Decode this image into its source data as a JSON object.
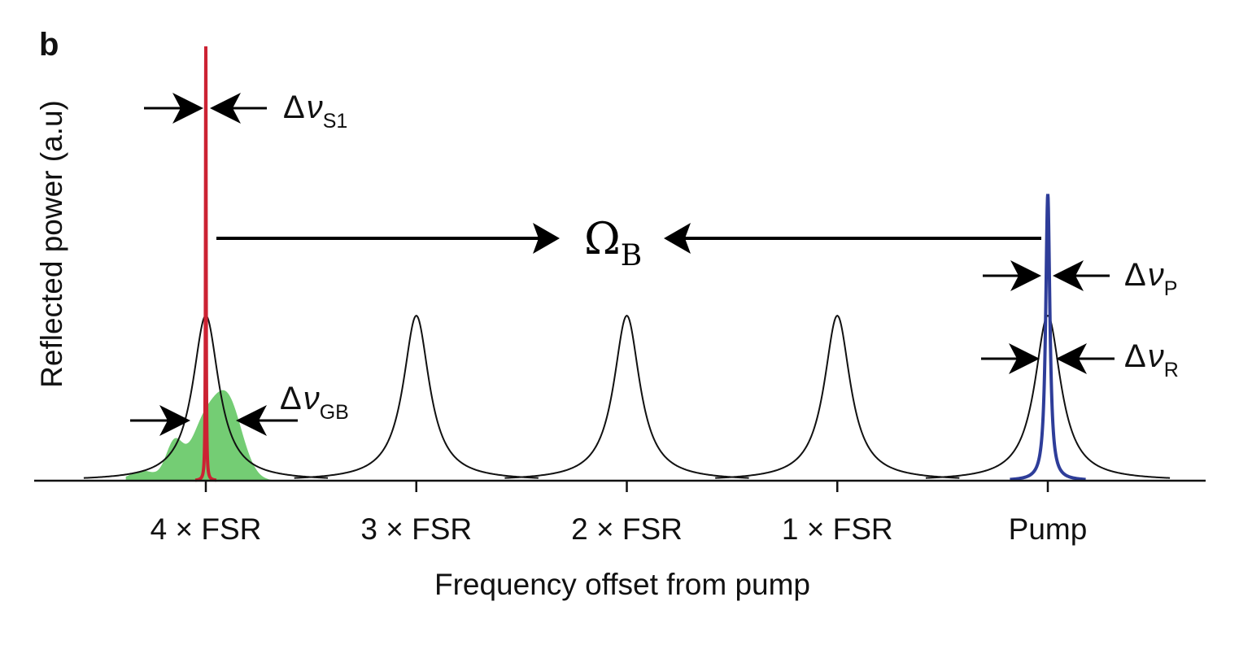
{
  "panel_label": "b",
  "chart_data": {
    "type": "line",
    "xlabel": "Frequency offset from pump",
    "ylabel": "Reflected power (a.u)",
    "categories": [
      "4 × FSR",
      "3 × FSR",
      "2 × FSR",
      "1 × FSR",
      "Pump"
    ],
    "x": [
      -4,
      -3,
      -2,
      -1,
      0
    ],
    "series": [
      {
        "name": "",
        "kind": "cavity-resonances",
        "color": "#111111",
        "centers": [
          -4,
          -3,
          -2,
          -1,
          0
        ],
        "peak": 0.38
      },
      {
        "name": "",
        "kind": "stokes-line",
        "color": "#cc2233",
        "center": -4,
        "peak": 1.0
      },
      {
        "name": "",
        "kind": "pump-line",
        "color": "#2e3d99",
        "center": 0,
        "peak": 0.66
      },
      {
        "name": "",
        "kind": "brillouin-gain",
        "color": "#5cc45c",
        "center": -4,
        "peak": 0.19
      }
    ],
    "annotations": {
      "shift": {
        "symbol": "Ω",
        "sub": "B"
      },
      "widths": [
        {
          "symbol": "Δ",
          "var": "ν",
          "sub": "S1"
        },
        {
          "symbol": "Δ",
          "var": "ν",
          "sub": "GB"
        },
        {
          "symbol": "Δ",
          "var": "ν",
          "sub": "P"
        },
        {
          "symbol": "Δ",
          "var": "ν",
          "sub": "R"
        }
      ]
    },
    "grid": false,
    "legend": "none"
  }
}
